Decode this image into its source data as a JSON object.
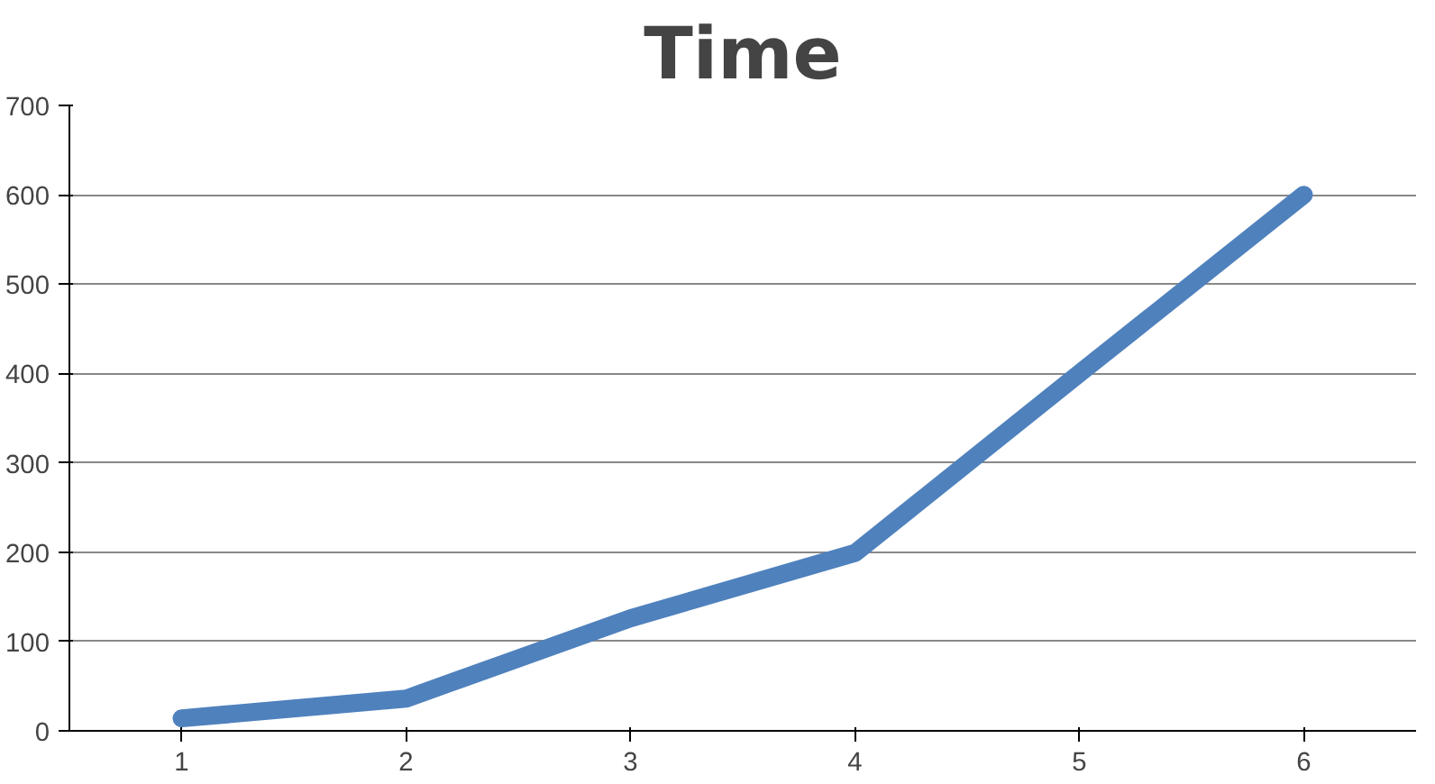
{
  "chart_data": {
    "type": "line",
    "title": "Time",
    "categories": [
      "1",
      "2",
      "3",
      "4",
      "5",
      "6"
    ],
    "series": [
      {
        "color": "#4f81bd",
        "values": [
          14,
          36,
          126,
          199,
          400,
          600
        ]
      }
    ],
    "ylim": [
      0,
      700
    ],
    "yticks": [
      0,
      100,
      200,
      300,
      400,
      500,
      600,
      700
    ],
    "grid": "y",
    "line_style": "solid"
  }
}
